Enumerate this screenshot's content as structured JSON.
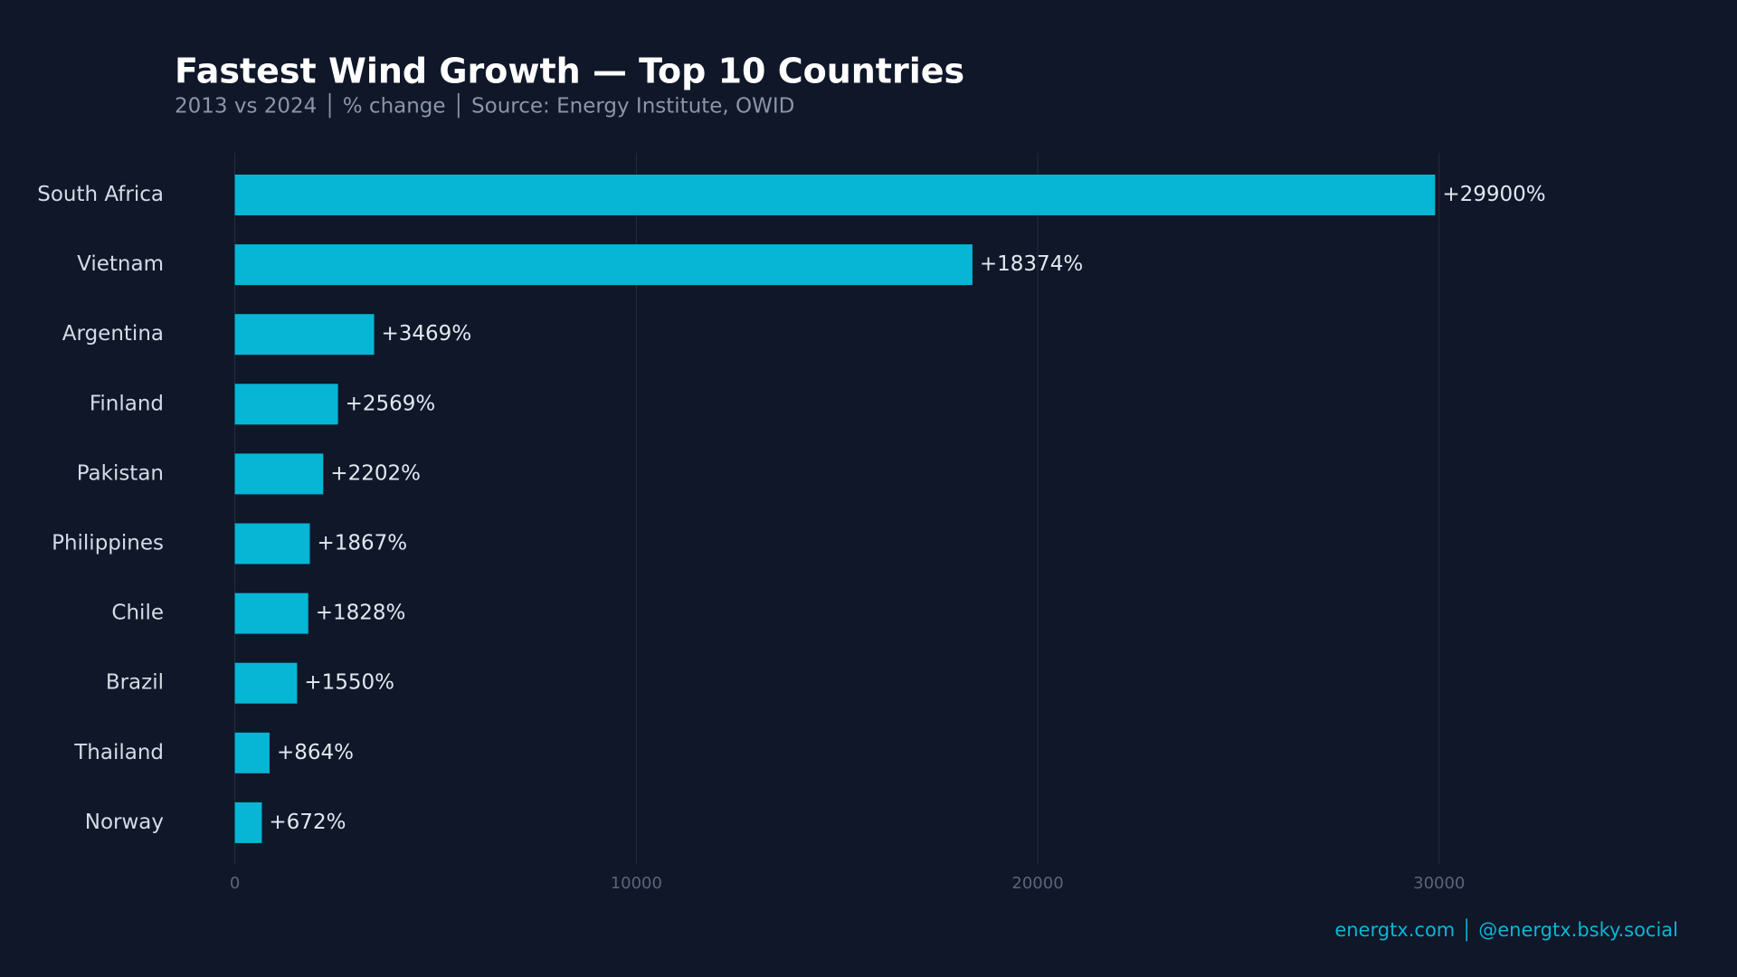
{
  "chart_data": {
    "type": "bar",
    "orientation": "horizontal",
    "title": "Fastest Wind Growth — Top 10 Countries",
    "subtitle": "2013 vs 2024 │ % change │ Source: Energy Institute, OWID",
    "footer": "energtx.com │ @energtx.bsky.social",
    "categories": [
      "South Africa",
      "Vietnam",
      "Argentina",
      "Finland",
      "Pakistan",
      "Philippines",
      "Chile",
      "Brazil",
      "Thailand",
      "Norway"
    ],
    "values": [
      29900,
      18374,
      3469,
      2569,
      2202,
      1867,
      1828,
      1550,
      864,
      672
    ],
    "value_labels": [
      "+29900%",
      "+18374%",
      "+3469%",
      "+2569%",
      "+2202%",
      "+1867%",
      "+1828%",
      "+1550%",
      "+864%",
      "+672%"
    ],
    "color": "#06b6d4",
    "xlim": [
      0,
      36000
    ],
    "xticks": [
      0,
      10000,
      20000,
      30000
    ],
    "grid": true
  }
}
